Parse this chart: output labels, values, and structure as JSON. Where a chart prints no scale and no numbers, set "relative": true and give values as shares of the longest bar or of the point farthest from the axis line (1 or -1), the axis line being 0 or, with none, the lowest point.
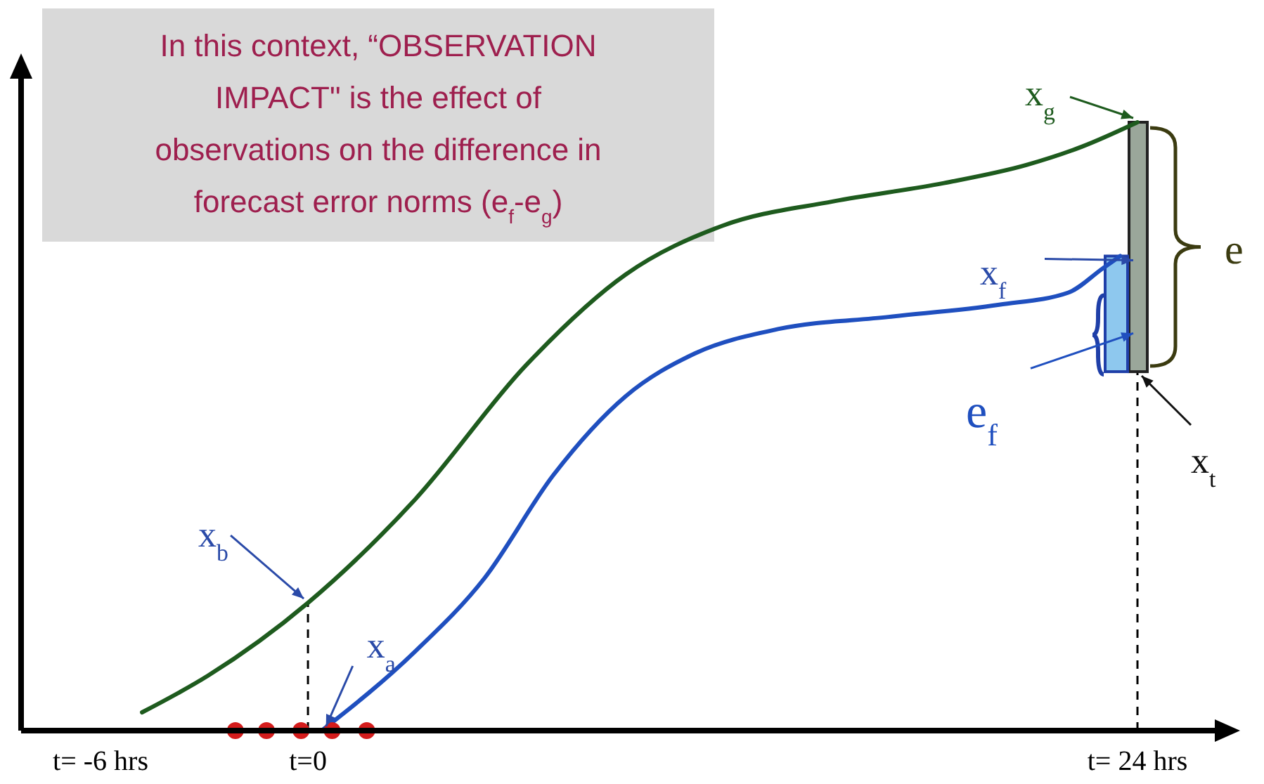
{
  "chart_data": {
    "type": "line",
    "relative": true,
    "tick_labels": "x",
    "line_style": "solid",
    "xlim": [
      -8.3,
      26.4
    ],
    "xticks": [
      {
        "value": -6,
        "label": "t= -6 hrs"
      },
      {
        "value": 0,
        "label": "t=0"
      },
      {
        "value": 24,
        "label": "t= 24 hrs"
      }
    ],
    "series": [
      {
        "color": "#1e5b1e",
        "x": [
          -4.8,
          -2.9,
          0,
          3.1,
          6.3,
          9.2,
          12.0,
          15.2,
          18.4,
          20.8,
          22.4,
          24
        ],
        "values": [
          0.03,
          0.09,
          0.21,
          0.38,
          0.6,
          0.75,
          0.83,
          0.87,
          0.9,
          0.93,
          0.96,
          1.0
        ]
      },
      {
        "color": "#1f4fbf",
        "x": [
          0.4,
          3.1,
          5.1,
          7.1,
          9.2,
          11.2,
          13.6,
          16.8,
          20.0,
          22.0,
          23.0,
          23.5
        ],
        "values": [
          0.0,
          0.13,
          0.25,
          0.42,
          0.55,
          0.62,
          0.66,
          0.68,
          0.7,
          0.72,
          0.76,
          0.78
        ]
      },
      {
        "type": "scatter",
        "marker": "circle",
        "color": "#d41c1c",
        "x": [
          -2.1,
          -1.2,
          -0.2,
          0.7,
          1.7
        ],
        "values": [
          0,
          0,
          0,
          0,
          0
        ]
      }
    ],
    "ref_lines": [
      {
        "axis": "x",
        "value": 0,
        "color": "#000000",
        "line_style": "dashed"
      },
      {
        "axis": "x",
        "value": 24,
        "color": "#000000",
        "line_style": "dashed"
      }
    ],
    "annotations": [
      "In this context, “OBSERVATION IMPACT\" is the effect of observations on the difference in forecast error norms (e$_{f}$-e$_{g}$)",
      {
        "text": "x$_{b}$",
        "x": 0,
        "y": 0.21
      },
      {
        "text": "x$_{a}$",
        "x": 0.4,
        "y": 0
      },
      {
        "text": "x$_{g}$",
        "x": 24,
        "y": 1.0
      },
      {
        "text": "x$_{f}$",
        "x": 24,
        "y": 0.78
      },
      {
        "text": "x$_{t}$",
        "x": 24,
        "y": 0.59
      },
      {
        "text": "e$_{f}$",
        "x": 24,
        "y": 0.66
      },
      {
        "text": "e",
        "x": 24,
        "y": 0.8
      }
    ]
  }
}
